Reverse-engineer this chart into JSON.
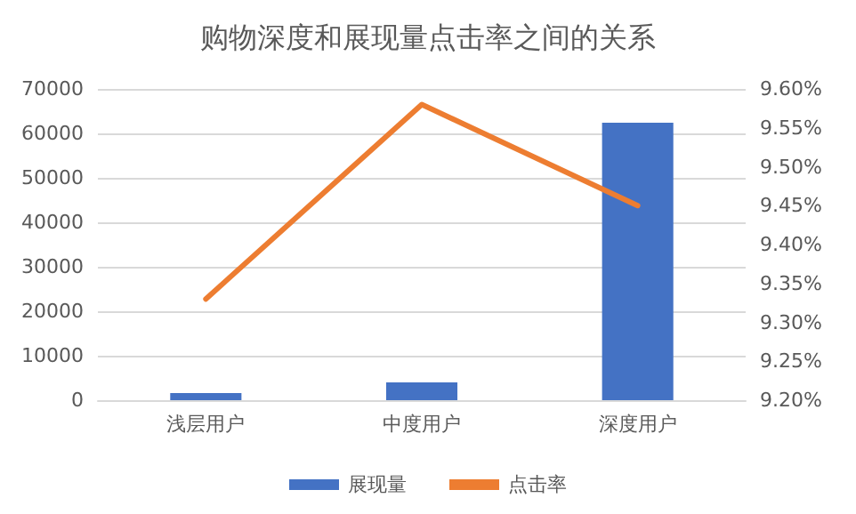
{
  "chart_data": {
    "type": "bar",
    "title": "购物深度和展现量点击率之间的关系",
    "categories": [
      "浅层用户",
      "中度用户",
      "深度用户"
    ],
    "series": [
      {
        "name": "展现量",
        "color": "#4472c4",
        "values": [
          1600,
          4000,
          62400
        ]
      },
      {
        "name": "点击率",
        "type": "line",
        "axis": "y2",
        "color": "#ed7d31",
        "values": [
          9.33,
          9.58,
          9.45
        ]
      }
    ],
    "ylim": [
      0,
      70000
    ],
    "yticks": [
      0,
      10000,
      20000,
      30000,
      40000,
      50000,
      60000,
      70000
    ],
    "y2lim": [
      9.2,
      9.6
    ],
    "y2ticks": [
      {
        "value": 9.2,
        "label": "9.20%"
      },
      {
        "value": 9.25,
        "label": "9.25%"
      },
      {
        "value": 9.3,
        "label": "9.30%"
      },
      {
        "value": 9.35,
        "label": "9.35%"
      },
      {
        "value": 9.4,
        "label": "9.40%"
      },
      {
        "value": 9.45,
        "label": "9.45%"
      },
      {
        "value": 9.5,
        "label": "9.50%"
      },
      {
        "value": 9.55,
        "label": "9.55%"
      },
      {
        "value": 9.6,
        "label": "9.60%"
      }
    ],
    "grid": "y",
    "legend": "bottom",
    "marker": "none"
  }
}
